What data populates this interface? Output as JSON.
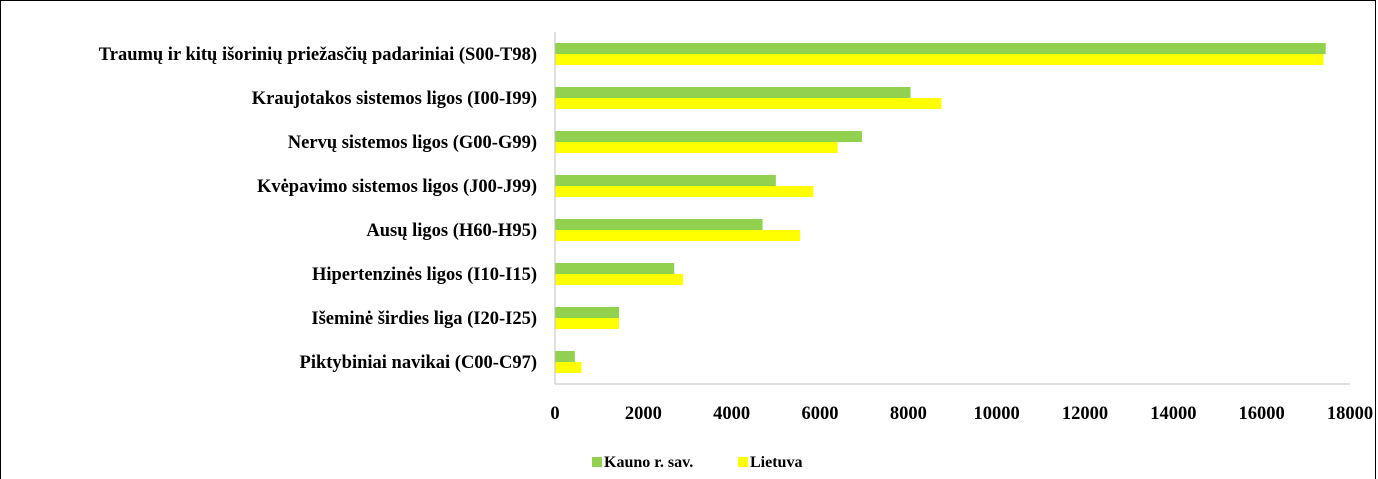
{
  "chart_data": {
    "type": "bar",
    "orientation": "horizontal",
    "categories": [
      "Traumų ir kitų išorinių priežasčių padariniai (S00-T98)",
      "Kraujotakos sistemos ligos (I00-I99)",
      "Nervų sistemos ligos (G00-G99)",
      "Kvėpavimo sistemos ligos (J00-J99)",
      "Ausų ligos (H60-H95)",
      "Hipertenzinės ligos (I10-I15)",
      "Išeminė širdies liga (I20-I25)",
      "Piktybiniai navikai (C00-C97)"
    ],
    "series": [
      {
        "name": "Kauno r. sav.",
        "color": "#92d050",
        "values": [
          17450,
          8050,
          6950,
          5000,
          4700,
          2700,
          1450,
          450
        ]
      },
      {
        "name": "Lietuva",
        "color": "#ffff00",
        "values": [
          17400,
          8750,
          6400,
          5850,
          5550,
          2900,
          1450,
          600
        ]
      }
    ],
    "xlim": [
      0,
      18000
    ],
    "xticks": [
      "0",
      "2000",
      "4000",
      "6000",
      "8000",
      "10000",
      "12000",
      "14000",
      "16000",
      "18000"
    ],
    "grid": false,
    "legend_position": "bottom"
  }
}
